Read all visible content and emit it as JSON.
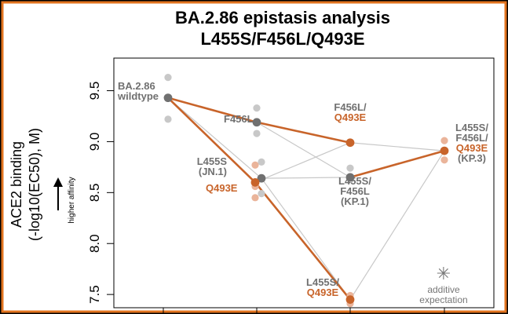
{
  "chart_data": {
    "type": "line",
    "title_line1": "BA.2.86 epistasis analysis",
    "title_line2": "L455S/F456L/Q493E",
    "ylabel_line1": "ACE2 binding",
    "ylabel_line2": "(-log10(EC50), M)",
    "ylabel_arrow_text": "higher affinity",
    "ylim": [
      7.37,
      9.82
    ],
    "yticks": [
      "7.5",
      "8.0",
      "8.5",
      "9.0",
      "9.5"
    ],
    "xlevels": [
      0,
      1,
      2,
      3
    ],
    "colors": {
      "orange": "#c8642a",
      "gray": "#707070",
      "light_gray": "#c8c8c8",
      "light_orange": "#eab49a",
      "border": "#e2731e"
    },
    "genotypes": [
      {
        "id": "wt",
        "x": 0,
        "y": 9.43,
        "reps": [
          9.63,
          9.43,
          9.22
        ],
        "highlight": false,
        "labels": [
          {
            "text": "BA.2.86",
            "color": "gray"
          },
          {
            "text": "wildtype",
            "color": "gray"
          }
        ]
      },
      {
        "id": "F456L",
        "x": 1,
        "y": 9.19,
        "reps": [
          9.33,
          9.19,
          9.08
        ],
        "highlight": false,
        "labels": [
          {
            "text": "F456L",
            "color": "gray"
          }
        ]
      },
      {
        "id": "L455S",
        "x": 1,
        "y": 8.64,
        "reps": [
          8.8,
          8.64,
          8.49
        ],
        "highlight": false,
        "labels": [
          {
            "text": "L455S",
            "color": "gray"
          },
          {
            "text": "(JN.1)",
            "color": "gray"
          }
        ]
      },
      {
        "id": "Q493E",
        "x": 1,
        "y": 8.6,
        "reps": [
          8.77,
          8.56,
          8.45
        ],
        "highlight": true,
        "labels": [
          {
            "text": "Q493E",
            "color": "orange"
          }
        ]
      },
      {
        "id": "F456L_Q493E",
        "x": 2,
        "y": 8.99,
        "reps": [
          8.99
        ],
        "highlight": true,
        "labels": [
          {
            "text": "F456L/",
            "color": "gray"
          },
          {
            "text": "Q493E",
            "color": "orange"
          }
        ]
      },
      {
        "id": "L455S_F456L",
        "x": 2,
        "y": 8.65,
        "reps": [
          8.74,
          8.65,
          8.63
        ],
        "highlight": false,
        "labels": [
          {
            "text": "L455S/",
            "color": "gray"
          },
          {
            "text": "F456L",
            "color": "gray"
          },
          {
            "text": "(KP.1)",
            "color": "gray"
          }
        ]
      },
      {
        "id": "L455S_Q493E",
        "x": 2,
        "y": 7.45,
        "reps": [
          7.49,
          7.45,
          7.41
        ],
        "highlight": true,
        "labels": [
          {
            "text": "L455S/",
            "color": "gray"
          },
          {
            "text": "Q493E",
            "color": "orange"
          }
        ]
      },
      {
        "id": "triple",
        "x": 3,
        "y": 8.91,
        "reps": [
          9.01,
          8.91,
          8.82
        ],
        "highlight": true,
        "labels": [
          {
            "text": "L455S/",
            "color": "gray"
          },
          {
            "text": "F456L/",
            "color": "gray"
          },
          {
            "text": "Q493E",
            "color": "orange"
          },
          {
            "text": "(KP.3)",
            "color": "gray"
          }
        ]
      }
    ],
    "edges": [
      {
        "from": "wt",
        "to": "F456L",
        "highlight": true
      },
      {
        "from": "wt",
        "to": "L455S",
        "highlight": false
      },
      {
        "from": "wt",
        "to": "Q493E",
        "highlight": true
      },
      {
        "from": "F456L",
        "to": "F456L_Q493E",
        "highlight": true
      },
      {
        "from": "F456L",
        "to": "L455S_F456L",
        "highlight": false
      },
      {
        "from": "L455S",
        "to": "L455S_F456L",
        "highlight": false
      },
      {
        "from": "L455S",
        "to": "L455S_Q493E",
        "highlight": false
      },
      {
        "from": "Q493E",
        "to": "F456L_Q493E",
        "highlight": false
      },
      {
        "from": "Q493E",
        "to": "L455S_Q493E",
        "highlight": true
      },
      {
        "from": "F456L_Q493E",
        "to": "triple",
        "highlight": false
      },
      {
        "from": "L455S_F456L",
        "to": "triple",
        "highlight": true
      },
      {
        "from": "L455S_Q493E",
        "to": "triple",
        "highlight": false
      }
    ],
    "additive_legend": {
      "symbol": "✳",
      "line1": "additive",
      "line2": "expectation"
    }
  }
}
